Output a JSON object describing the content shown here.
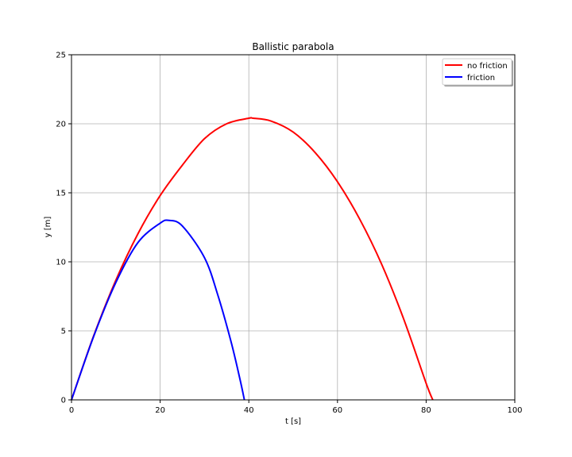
{
  "chart_data": {
    "type": "line",
    "title": "Ballistic parabola",
    "xlabel": "t [s]",
    "ylabel": "y [m]",
    "xlim": [
      0,
      100
    ],
    "ylim": [
      0,
      25
    ],
    "xticks": [
      0,
      20,
      40,
      60,
      80,
      100
    ],
    "yticks": [
      0,
      5,
      10,
      15,
      20,
      25
    ],
    "grid": true,
    "legend_position": "upper right",
    "series": [
      {
        "name": "no friction",
        "color": "#ff0000",
        "x": [
          0,
          5,
          10,
          15,
          20,
          25,
          30,
          35,
          40,
          41,
          45,
          50,
          55,
          60,
          65,
          70,
          75,
          80,
          81.5
        ],
        "y": [
          0,
          4.64,
          8.66,
          12.04,
          14.8,
          17.0,
          18.92,
          20.0,
          20.4,
          20.4,
          20.2,
          19.4,
          17.9,
          15.8,
          13.1,
          9.8,
          5.8,
          1.2,
          0
        ]
      },
      {
        "name": "friction",
        "color": "#0000ff",
        "x": [
          0,
          5,
          10,
          15,
          20,
          22,
          25,
          30,
          33,
          36,
          38,
          39
        ],
        "y": [
          0,
          4.6,
          8.5,
          11.4,
          12.8,
          13.0,
          12.6,
          10.3,
          7.6,
          4.2,
          1.5,
          0
        ]
      }
    ]
  }
}
